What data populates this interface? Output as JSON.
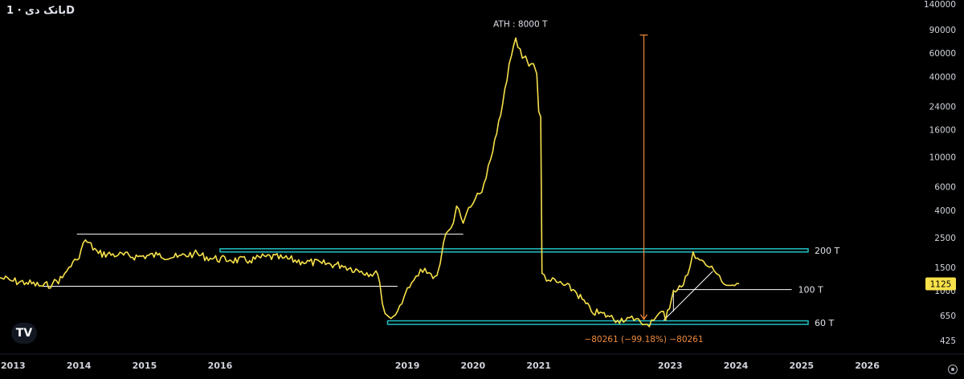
{
  "header": {
    "symbol": "بانک دی · 1D"
  },
  "logo_text": "TV",
  "colors": {
    "background": "#000000",
    "price_line": "#f7e14a",
    "support_band": "#22c1c3",
    "trend_line": "#ffffff",
    "measure": "#f08a3c",
    "price_badge_bg": "#f7e14a",
    "axis_text": "#d1d4dc"
  },
  "chart_data": {
    "type": "line",
    "title": "",
    "xlabel": "",
    "ylabel": "",
    "y_scale": "log",
    "ylim": [
      340,
      150000
    ],
    "xlim": [
      2012.8,
      2026.8
    ],
    "x_ticks": [
      {
        "value": 2013,
        "label": "2013"
      },
      {
        "value": 2014,
        "label": "2014"
      },
      {
        "value": 2015,
        "label": "2015"
      },
      {
        "value": 2016.15,
        "label": "2016"
      },
      {
        "value": 2019,
        "label": "2019"
      },
      {
        "value": 2020,
        "label": "2020"
      },
      {
        "value": 2021,
        "label": "2021"
      },
      {
        "value": 2023,
        "label": "2023"
      },
      {
        "value": 2024,
        "label": "2024"
      },
      {
        "value": 2025,
        "label": "2025"
      },
      {
        "value": 2026,
        "label": "2026"
      }
    ],
    "y_ticks": [
      425,
      650,
      1000,
      1500,
      2500,
      4000,
      6000,
      10000,
      16000,
      24000,
      40000,
      60000,
      90000,
      140000
    ],
    "series": [
      {
        "x": [
          2012.8,
          2013.0,
          2013.2,
          2013.45,
          2013.6,
          2013.75,
          2013.85,
          2013.97,
          2014.1,
          2014.3,
          2014.6,
          2014.9,
          2015.2,
          2015.5,
          2015.75,
          2016.0,
          2016.3,
          2016.6,
          2016.85,
          2017.1,
          2017.4,
          2017.7,
          2018.0,
          2018.3,
          2018.55,
          2018.58,
          2018.62,
          2018.7,
          2018.75,
          2018.85,
          2018.95,
          2019.0,
          2019.1,
          2019.2,
          2019.3,
          2019.45,
          2019.5,
          2019.55,
          2019.62,
          2019.7,
          2019.75,
          2019.82,
          2019.85,
          2019.9,
          2020.0,
          2020.1,
          2020.2,
          2020.3,
          2020.45,
          2020.55,
          2020.65,
          2020.75,
          2020.8,
          2020.85,
          2020.92,
          2020.97,
          2021.0,
          2021.03,
          2021.05,
          2021.15,
          2021.3,
          2021.55,
          2021.8,
          2022.05,
          2022.2,
          2022.35,
          2022.45,
          2022.55,
          2022.65,
          2022.75,
          2022.8,
          2022.9,
          2022.93,
          2023.05,
          2023.2,
          2023.3,
          2023.35,
          2023.45,
          2023.6,
          2023.7,
          2023.75,
          2023.85,
          2023.95,
          2024.05
        ],
        "y": [
          1250,
          1180,
          1150,
          1080,
          1130,
          1250,
          1500,
          1700,
          2400,
          1900,
          1850,
          1800,
          1850,
          1780,
          1900,
          1750,
          1700,
          1680,
          1800,
          1750,
          1650,
          1600,
          1550,
          1400,
          1320,
          1150,
          800,
          650,
          620,
          700,
          900,
          1050,
          1200,
          1450,
          1350,
          1300,
          1600,
          2300,
          2800,
          3200,
          4300,
          3500,
          3200,
          3800,
          4500,
          5300,
          7000,
          11000,
          25000,
          50000,
          78000,
          55000,
          57000,
          48000,
          50000,
          42000,
          22000,
          20000,
          1350,
          1200,
          1150,
          1000,
          700,
          650,
          600,
          630,
          600,
          580,
          560,
          600,
          650,
          700,
          600,
          1000,
          1100,
          1500,
          1950,
          1700,
          1500,
          1350,
          1300,
          1100,
          1100,
          1125
        ]
      }
    ],
    "last_price": "1125",
    "annotations": {
      "ath_label": "ATH : 8000 T",
      "level_200": "200 T",
      "level_100": "100 T",
      "level_60": "60 T",
      "measure_label": "−80261 (−99.18%) −80261"
    },
    "levels": [
      {
        "kind": "band",
        "y_low": 1950,
        "y_high": 2060,
        "x0": 2016.15,
        "x1": 2025.1,
        "label_key": "level_200"
      },
      {
        "kind": "band",
        "y_low": 560,
        "y_high": 595,
        "x0": 2018.7,
        "x1": 2025.1,
        "label_key": "level_60"
      },
      {
        "kind": "line",
        "y": 2650,
        "x0": 2013.97,
        "x1": 2019.85
      },
      {
        "kind": "line",
        "y": 1080,
        "x0": 2013.45,
        "x1": 2018.85
      },
      {
        "kind": "line",
        "y": 1020,
        "x0": 2023.1,
        "x1": 2024.85,
        "label_key": "level_100"
      },
      {
        "kind": "trend",
        "x0": 2022.9,
        "y0": 600,
        "x1": 2023.65,
        "y1": 1400
      },
      {
        "kind": "trend",
        "x0": 2023.05,
        "y0": 1020,
        "x1": 2023.05,
        "y1": 700
      },
      {
        "kind": "measure",
        "x": 2022.6,
        "y_top": 82000,
        "y_bottom": 610
      }
    ]
  }
}
